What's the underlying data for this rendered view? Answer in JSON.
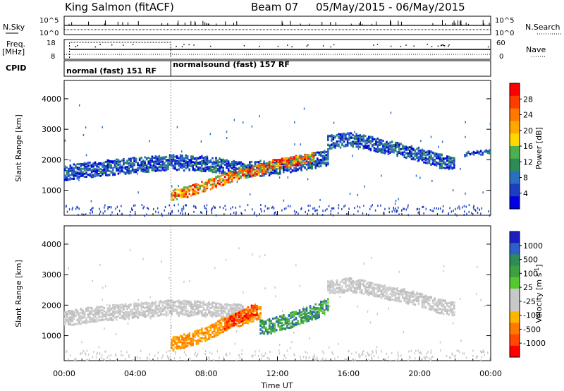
{
  "header": {
    "station": "King Salmon (fitACF)",
    "beam": "Beam 07",
    "date_range": "05/May/2015 - 06/May/2015"
  },
  "left_labels": {
    "nsky": "N.Sky",
    "freq": "Freq.",
    "freq_unit": "[MHz]",
    "cpid": "CPID"
  },
  "right_labels": {
    "nsearch": "N.Search",
    "nave": "Nave"
  },
  "noise_ticks": {
    "top": "10^5",
    "bottom": "10^0"
  },
  "freq_ticks": {
    "top": "18",
    "bottom": "8"
  },
  "nave_ticks": {
    "top": "60",
    "bottom": "0"
  },
  "cpid": [
    {
      "label": "normal (fast) 151 RF",
      "start": 0,
      "end": 6
    },
    {
      "label": "normalsound (fast) 157 RF",
      "start": 6,
      "end": 24
    }
  ],
  "colorbars": {
    "power": {
      "label": "Power [dB]",
      "ticks": [
        "28",
        "24",
        "20",
        "16",
        "12",
        "8",
        "4"
      ],
      "colors": [
        "#ff0000",
        "#ff3c00",
        "#ff7800",
        "#ffa800",
        "#ffd800",
        "#4caf50",
        "#2e8b57",
        "#2a6fbf",
        "#1c3fbf",
        "#0000e0"
      ]
    },
    "velocity": {
      "label": "Velocity [m s",
      "label_sup": "-1",
      "label_end": "]",
      "ticks": [
        "1000",
        "500",
        "100",
        "25",
        "-25",
        "-100",
        "-500",
        "-1000"
      ],
      "colors": [
        "#1e1ebe",
        "#2e5ec8",
        "#2e8b57",
        "#3ea040",
        "#55c830",
        "#c8c8c8",
        "#c8c8c8",
        "#ffb400",
        "#ff7800",
        "#ff4800",
        "#ff0000"
      ]
    }
  },
  "chart_data": [
    {
      "type": "heatmap",
      "name": "power",
      "ylabel": "Slant Range [km]",
      "yticks": [
        1000,
        2000,
        3000,
        4000
      ],
      "ylim": [
        180,
        4600
      ],
      "xlim": [
        0,
        24
      ],
      "bands": [
        {
          "x": [
            0,
            2,
            4,
            6,
            8,
            10,
            12,
            14,
            14.8
          ],
          "y": [
            1600,
            1750,
            1850,
            1950,
            1900,
            1700,
            1800,
            2000,
            2100
          ],
          "width": 500,
          "level": "low"
        },
        {
          "x": [
            6,
            7,
            8,
            9,
            10,
            11,
            12,
            13,
            14
          ],
          "y": [
            850,
            1000,
            1200,
            1400,
            1600,
            1700,
            1900,
            2000,
            2100
          ],
          "width": 350,
          "level": "high"
        },
        {
          "x": [
            14.8,
            16,
            17,
            18,
            19,
            20,
            21,
            22
          ],
          "y": [
            2600,
            2700,
            2600,
            2450,
            2350,
            2200,
            2000,
            1900
          ],
          "width": 450,
          "level": "low"
        },
        {
          "x": [
            22.5,
            23,
            24
          ],
          "y": [
            2200,
            2250,
            2300
          ],
          "width": 150,
          "level": "low"
        }
      ]
    },
    {
      "type": "heatmap",
      "name": "velocity",
      "xlabel": "Time UT",
      "xticks": [
        "00:00",
        "04:00",
        "08:00",
        "12:00",
        "16:00",
        "20:00",
        "00:00"
      ],
      "ylabel": "Slant Range [km]",
      "yticks": [
        1000,
        2000,
        3000,
        4000
      ],
      "ylim": [
        180,
        4600
      ],
      "xlim": [
        0,
        24
      ],
      "bands": [
        {
          "x": [
            0,
            2,
            4,
            6,
            8,
            10
          ],
          "y": [
            1600,
            1750,
            1850,
            1950,
            1900,
            1800
          ],
          "width": 500,
          "level": "grey"
        },
        {
          "x": [
            6,
            7,
            8,
            9,
            10,
            11
          ],
          "y": [
            750,
            900,
            1100,
            1400,
            1600,
            1800
          ],
          "width": 450,
          "level": "orange"
        },
        {
          "x": [
            9,
            10,
            10.8
          ],
          "y": [
            1400,
            1700,
            1900
          ],
          "width": 400,
          "level": "red"
        },
        {
          "x": [
            11,
            12,
            13,
            14,
            14.8
          ],
          "y": [
            1300,
            1400,
            1600,
            1800,
            2000
          ],
          "width": 500,
          "level": "green"
        },
        {
          "x": [
            14.8,
            16,
            17,
            18,
            19,
            20,
            21,
            22
          ],
          "y": [
            2600,
            2700,
            2600,
            2450,
            2350,
            2200,
            2000,
            1900
          ],
          "width": 450,
          "level": "grey"
        }
      ]
    }
  ]
}
